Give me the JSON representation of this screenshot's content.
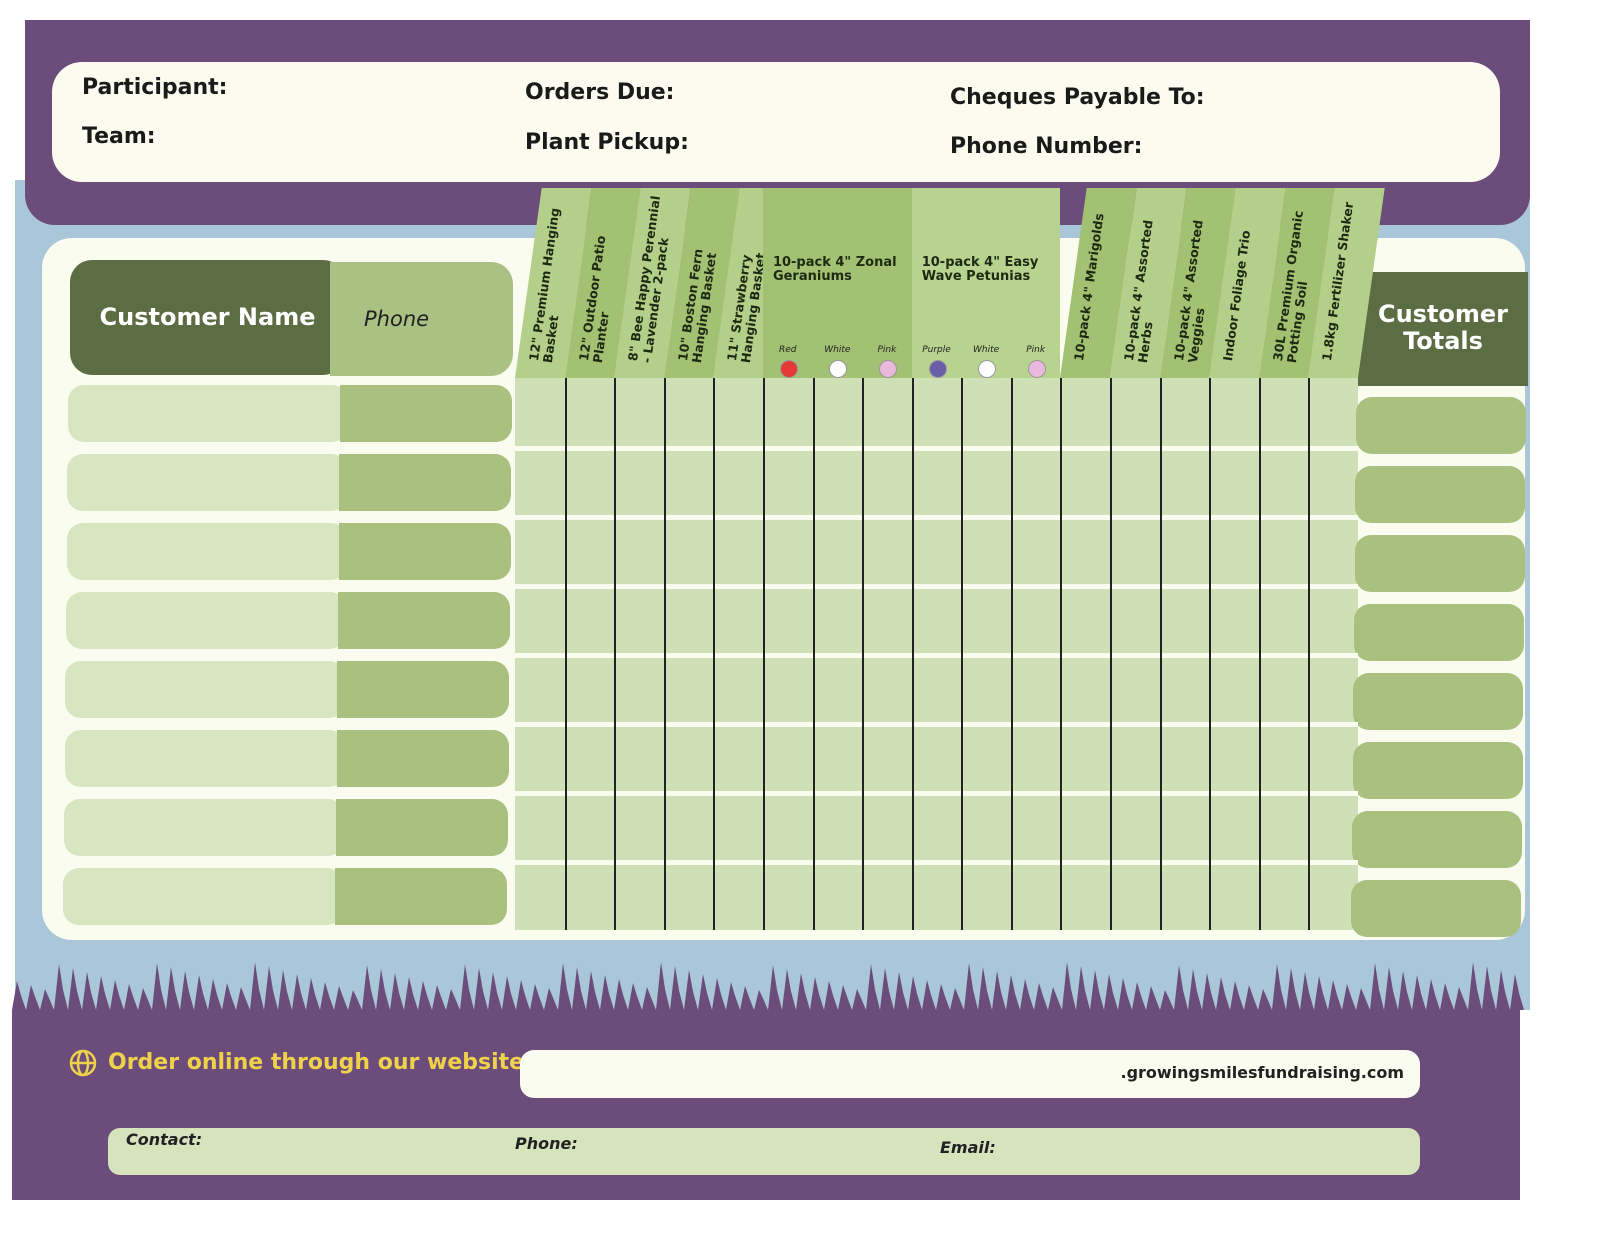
{
  "header": {
    "participant": "Participant:",
    "team": "Team:",
    "orders_due": "Orders Due:",
    "plant_pickup": "Plant Pickup:",
    "cheques": "Cheques Payable To:",
    "phone_number": "Phone Number:"
  },
  "table": {
    "customer_name": "Customer Name",
    "phone": "Phone",
    "totals": "Customer Totals",
    "columns": [
      {
        "label": "12\" Premium Hanging Basket"
      },
      {
        "label": "12\" Outdoor Patio Planter"
      },
      {
        "label": "8\" Bee Happy Perennial - Lavender 2-pack"
      },
      {
        "label": "10\" Boston Fern Hanging Basket"
      },
      {
        "label": "11\" Strawberry Hanging Basket"
      },
      {
        "label": "10-pack 4\" Zonal Geraniums",
        "options": [
          {
            "name": "Red",
            "color": "#e53935"
          },
          {
            "name": "White",
            "color": "#ffffff"
          },
          {
            "name": "Pink",
            "color": "#eab8dc"
          }
        ]
      },
      {
        "label": "10-pack 4\" Easy Wave Petunias",
        "options": [
          {
            "name": "Purple",
            "color": "#6a5ea8"
          },
          {
            "name": "White",
            "color": "#ffffff"
          },
          {
            "name": "Pink",
            "color": "#eab8dc"
          }
        ]
      },
      {
        "label": "10-pack 4\" Marigolds"
      },
      {
        "label": "10-pack 4\" Assorted Herbs"
      },
      {
        "label": "10-pack 4\" Assorted Veggies"
      },
      {
        "label": "Indoor Foliage Trio"
      },
      {
        "label": "30L Premium Organic Potting Soil"
      },
      {
        "label": "1.8kg Fertilizer Shaker"
      }
    ]
  },
  "footer": {
    "order_online": "Order online through our website:",
    "website": ".growingsmilesfundraising.com",
    "contact": "Contact:",
    "phone": "Phone:",
    "email": "Email:"
  }
}
